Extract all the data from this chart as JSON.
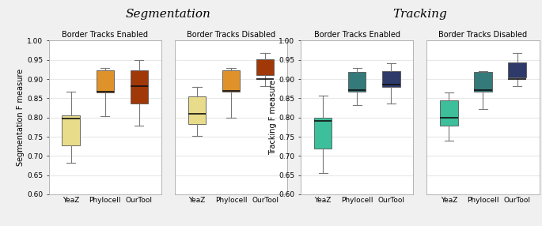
{
  "title_left": "Segmentation",
  "title_right": "Tracking",
  "ylabel_left": "Segmentation F measure",
  "ylabel_right": "Tracking F measure",
  "x_labels": [
    "YeaZ",
    "Phylocell",
    "OurTool"
  ],
  "subplot_titles": [
    "Border Tracks Enabled",
    "Border Tracks Disabled",
    "Border Tracks Enabled",
    "Border Tracks Disabled"
  ],
  "ylim": [
    0.6,
    1.0
  ],
  "yticks": [
    0.6,
    0.65,
    0.7,
    0.75,
    0.8,
    0.85,
    0.9,
    0.95,
    1.0
  ],
  "datasets": [
    {
      "YeaZ": {
        "whislo": 0.683,
        "q1": 0.727,
        "med": 0.798,
        "q3": 0.806,
        "whishi": 0.868
      },
      "Phylocell": {
        "whislo": 0.803,
        "q1": 0.866,
        "med": 0.868,
        "q3": 0.923,
        "whishi": 0.93
      },
      "OurTool": {
        "whislo": 0.778,
        "q1": 0.836,
        "med": 0.882,
        "q3": 0.922,
        "whishi": 0.95
      }
    },
    {
      "YeaZ": {
        "whislo": 0.752,
        "q1": 0.783,
        "med": 0.81,
        "q3": 0.855,
        "whishi": 0.88
      },
      "Phylocell": {
        "whislo": 0.8,
        "q1": 0.868,
        "med": 0.87,
        "q3": 0.922,
        "whishi": 0.93
      },
      "OurTool": {
        "whislo": 0.882,
        "q1": 0.91,
        "med": 0.9,
        "q3": 0.952,
        "whishi": 0.968
      }
    },
    {
      "YeaZ": {
        "whislo": 0.655,
        "q1": 0.72,
        "med": 0.792,
        "q3": 0.8,
        "whishi": 0.858
      },
      "Phylocell": {
        "whislo": 0.832,
        "q1": 0.868,
        "med": 0.872,
        "q3": 0.918,
        "whishi": 0.93
      },
      "OurTool": {
        "whislo": 0.837,
        "q1": 0.88,
        "med": 0.885,
        "q3": 0.92,
        "whishi": 0.942
      }
    },
    {
      "YeaZ": {
        "whislo": 0.74,
        "q1": 0.778,
        "med": 0.8,
        "q3": 0.845,
        "whishi": 0.865
      },
      "Phylocell": {
        "whislo": 0.822,
        "q1": 0.868,
        "med": 0.872,
        "q3": 0.918,
        "whishi": 0.92
      },
      "OurTool": {
        "whislo": 0.882,
        "q1": 0.905,
        "med": 0.9,
        "q3": 0.943,
        "whishi": 0.968
      }
    }
  ],
  "colors": [
    [
      "#e8dc8a",
      "#e0922a",
      "#a03808"
    ],
    [
      "#e8dc8a",
      "#e0922a",
      "#a03808"
    ],
    [
      "#3cbf9a",
      "#357a7a",
      "#2d3a6a"
    ],
    [
      "#3cbf9a",
      "#357a7a",
      "#2d3a6a"
    ]
  ],
  "fig_bg": "#f0f0f0",
  "ax_bg": "#ffffff",
  "grid_color": "#e8e8e8",
  "median_color": "#111111",
  "whisker_color": "#777777",
  "cap_color": "#777777",
  "box_edge_color": "#555555",
  "spine_color": "#aaaaaa",
  "title_fontsize": 11,
  "subtitle_fontsize": 7,
  "tick_fontsize": 6.5,
  "ylabel_fontsize": 7
}
